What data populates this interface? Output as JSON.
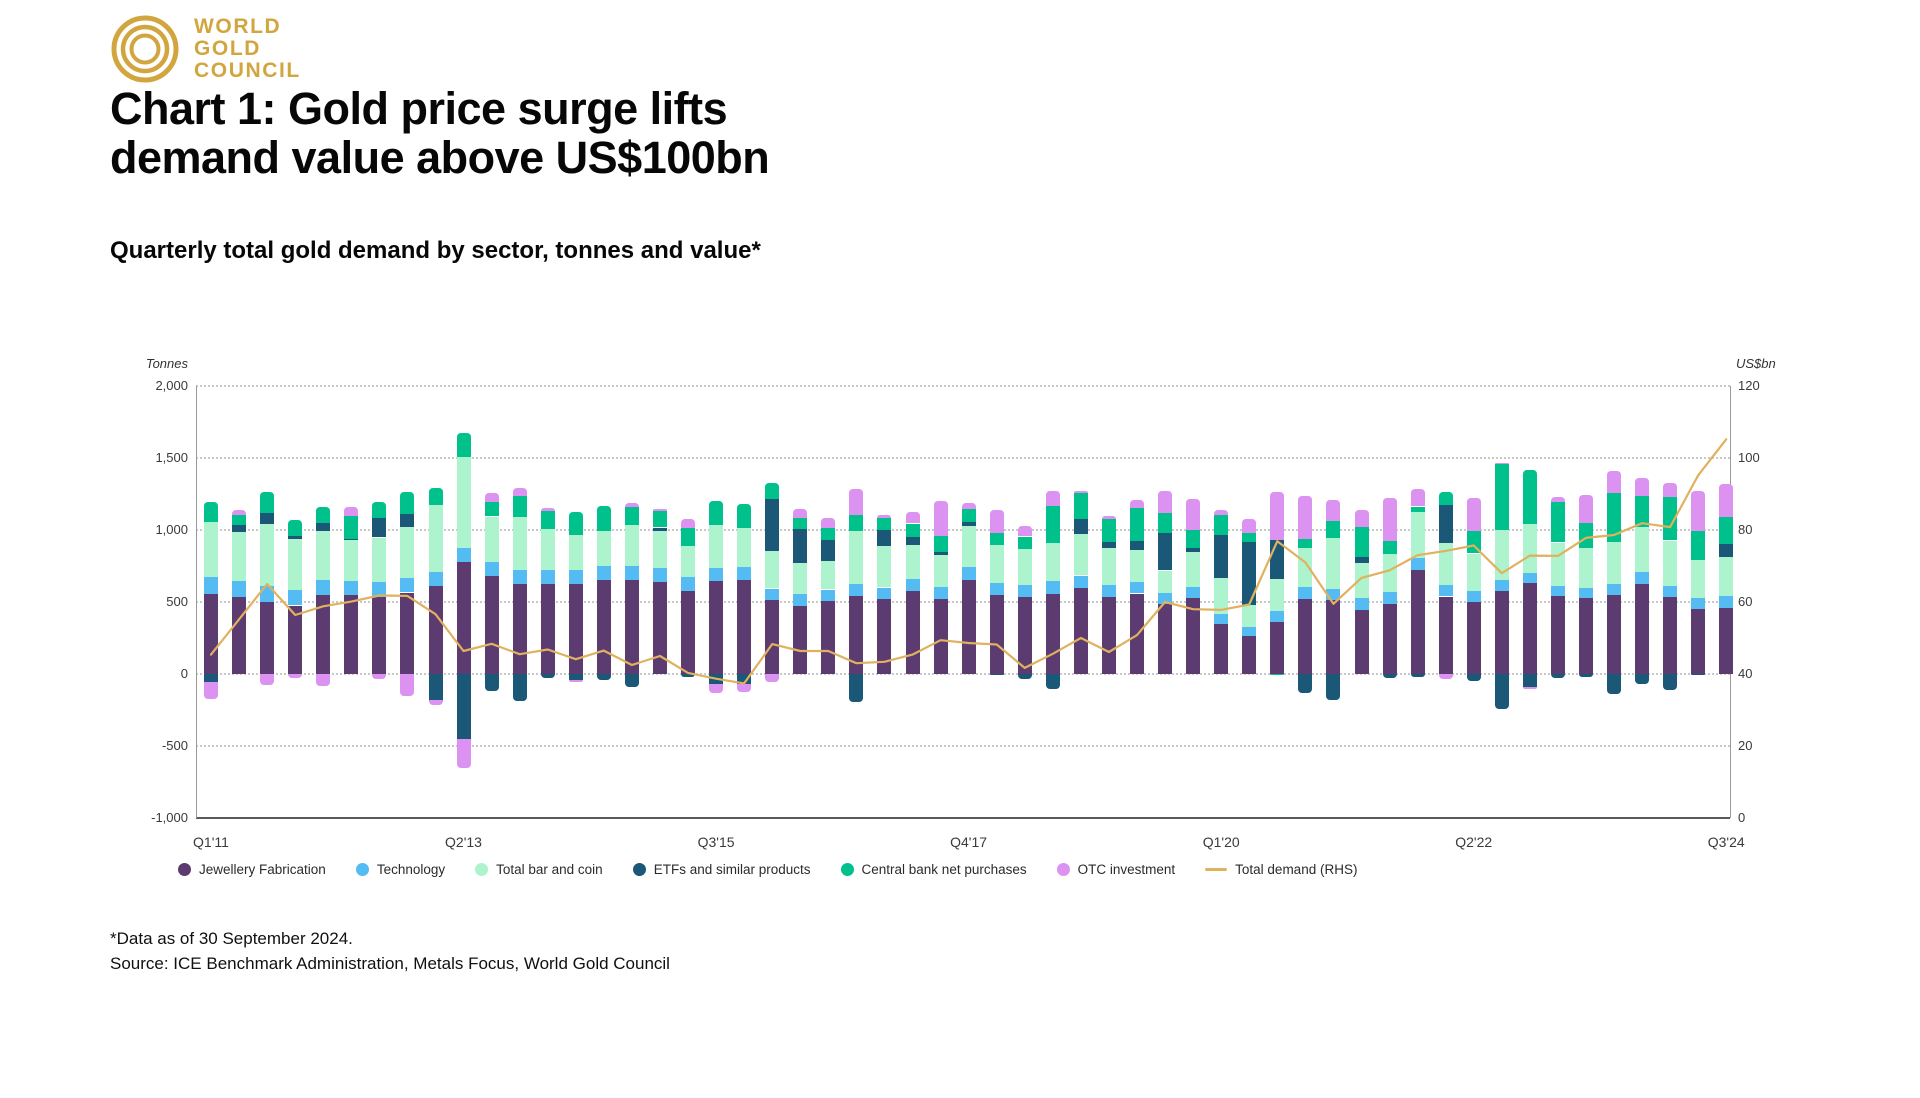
{
  "logo": {
    "lines": [
      "WORLD",
      "GOLD",
      "COUNCIL"
    ],
    "color": "#D2A63F"
  },
  "title_line1": "Chart 1: Gold price surge lifts",
  "title_line2": "demand value above US$100bn",
  "subtitle": "Quarterly total gold demand by sector, tonnes and value*",
  "footnotes": [
    "*Data as of 30 September 2024.",
    "Source: ICE Benchmark Administration, Metals Focus, World Gold Council"
  ],
  "chart_data": {
    "type": "bar",
    "subtype": "stacked-bars-with-line",
    "grid": "dotted-horizontal",
    "legend_position": "bottom",
    "left_axis": {
      "label": "Tonnes",
      "min": -1000,
      "max": 2000,
      "ticks": [
        {
          "v": 2000,
          "label": "2,000"
        },
        {
          "v": 1500,
          "label": "1,500"
        },
        {
          "v": 1000,
          "label": "1,000"
        },
        {
          "v": 500,
          "label": "500"
        },
        {
          "v": 0,
          "label": "0"
        },
        {
          "v": -500,
          "label": "-500"
        },
        {
          "v": -1000,
          "label": "-1,000"
        }
      ]
    },
    "right_axis": {
      "label": "US$bn",
      "min": 0,
      "max": 120,
      "ticks": [
        {
          "v": 120,
          "label": "120"
        },
        {
          "v": 100,
          "label": "100"
        },
        {
          "v": 80,
          "label": "80"
        },
        {
          "v": 60,
          "label": "60"
        },
        {
          "v": 40,
          "label": "40"
        },
        {
          "v": 20,
          "label": "20"
        },
        {
          "v": 0,
          "label": "0"
        }
      ]
    },
    "x_ticks": [
      {
        "index": 0,
        "label": "Q1'11"
      },
      {
        "index": 9,
        "label": "Q2'13"
      },
      {
        "index": 18,
        "label": "Q3'15"
      },
      {
        "index": 27,
        "label": "Q4'17"
      },
      {
        "index": 36,
        "label": "Q1'20"
      },
      {
        "index": 45,
        "label": "Q2'22"
      },
      {
        "index": 54,
        "label": "Q3'24"
      }
    ],
    "quarters": [
      "Q1'11",
      "Q2'11",
      "Q3'11",
      "Q4'11",
      "Q1'12",
      "Q2'12",
      "Q3'12",
      "Q4'12",
      "Q1'13",
      "Q2'13",
      "Q3'13",
      "Q4'13",
      "Q1'14",
      "Q2'14",
      "Q3'14",
      "Q4'14",
      "Q1'15",
      "Q2'15",
      "Q3'15",
      "Q4'15",
      "Q1'16",
      "Q2'16",
      "Q3'16",
      "Q4'16",
      "Q1'17",
      "Q2'17",
      "Q3'17",
      "Q4'17",
      "Q1'18",
      "Q2'18",
      "Q3'18",
      "Q4'18",
      "Q1'19",
      "Q2'19",
      "Q3'19",
      "Q4'19",
      "Q1'20",
      "Q2'20",
      "Q3'20",
      "Q4'20",
      "Q1'21",
      "Q2'21",
      "Q3'21",
      "Q4'21",
      "Q1'22",
      "Q2'22",
      "Q3'22",
      "Q4'22",
      "Q1'23",
      "Q2'23",
      "Q3'23",
      "Q4'23",
      "Q1'24",
      "Q2'24",
      "Q3'24"
    ],
    "series": [
      {
        "name": "Jewellery Fabrication",
        "color": "#5C3B70",
        "values": [
          556,
          534,
          503,
          476,
          550,
          546,
          534,
          566,
          612,
          776,
          679,
          625,
          627,
          625,
          653,
          655,
          642,
          578,
          648,
          651,
          515,
          474,
          505,
          544,
          521,
          577,
          520,
          654,
          550,
          535,
          558,
          600,
          537,
          559,
          486,
          527,
          347,
          261,
          360,
          522,
          512,
          447,
          485,
          720,
          538,
          498,
          578,
          630,
          540,
          529,
          549,
          626,
          535,
          450,
          459
        ]
      },
      {
        "name": "Technology",
        "color": "#54BCF2",
        "values": [
          116,
          112,
          111,
          105,
          103,
          99,
          102,
          99,
          98,
          101,
          99,
          99,
          96,
          97,
          96,
          96,
          94,
          93,
          91,
          91,
          79,
          79,
          82,
          83,
          80,
          81,
          84,
          86,
          82,
          83,
          85,
          84,
          79,
          81,
          80,
          80,
          71,
          66,
          77,
          84,
          81,
          80,
          84,
          86,
          82,
          78,
          77,
          72,
          70,
          70,
          75,
          81,
          79,
          81,
          83
        ]
      },
      {
        "name": "Total bar and coin",
        "color": "#ADF3CE",
        "values": [
          385,
          340,
          429,
          357,
          342,
          290,
          312,
          356,
          461,
          629,
          316,
          364,
          283,
          242,
          246,
          282,
          255,
          216,
          296,
          269,
          258,
          215,
          196,
          364,
          290,
          241,
          223,
          286,
          263,
          248,
          268,
          290,
          259,
          219,
          153,
          241,
          250,
          154,
          222,
          270,
          352,
          245,
          262,
          322,
          288,
          261,
          344,
          340,
          303,
          277,
          296,
          313,
          313,
          261,
          269
        ]
      },
      {
        "name": "ETFs and similar products",
        "color": "#1B5877",
        "values": [
          -56,
          50,
          78,
          19,
          51,
          1,
          138,
          88,
          -177,
          -450,
          -119,
          -185,
          -25,
          -38,
          -41,
          -89,
          26,
          -23,
          -67,
          -68,
          364,
          237,
          146,
          -193,
          109,
          56,
          19,
          29,
          -7,
          -33,
          -104,
          100,
          42,
          68,
          258,
          27,
          299,
          434,
          274,
          -130,
          -178,
          41,
          -27,
          -18,
          269,
          -47,
          -244,
          -90,
          -29,
          -21,
          -139,
          -70,
          -113,
          -7,
          95
        ]
      },
      {
        "name": "Central bank net purchases",
        "color": "#00C18C",
        "values": [
          137,
          66,
          141,
          112,
          116,
          161,
          112,
          156,
          124,
          165,
          101,
          150,
          124,
          158,
          175,
          127,
          112,
          127,
          168,
          169,
          109,
          80,
          82,
          112,
          82,
          90,
          111,
          91,
          86,
          89,
          253,
          180,
          157,
          224,
          141,
          128,
          139,
          63,
          -10,
          63,
          115,
          209,
          91,
          35,
          87,
          158,
          459,
          378,
          284,
          175,
          337,
          219,
          300,
          202,
          186
        ]
      },
      {
        "name": "OTC investment",
        "color": "#DC92F0",
        "values": [
          -120,
          35,
          -75,
          -30,
          -80,
          65,
          -35,
          -150,
          -40,
          -200,
          60,
          55,
          20,
          -20,
          0,
          30,
          20,
          60,
          -66,
          -60,
          -55,
          60,
          70,
          185,
          25,
          78,
          245,
          40,
          155,
          70,
          110,
          15,
          25,
          55,
          150,
          215,
          30,
          100,
          330,
          300,
          150,
          120,
          300,
          120,
          -35,
          230,
          10,
          -15,
          30,
          195,
          150,
          120,
          100,
          280,
          230
        ]
      }
    ],
    "line_series": {
      "name": "Total demand (RHS)",
      "color": "#E0B15E",
      "axis": "right",
      "values": [
        45.4,
        55.2,
        65.0,
        56.4,
        58.8,
        60.1,
        61.8,
        61.7,
        56.6,
        46.4,
        48.4,
        45.5,
        46.8,
        44.1,
        46.5,
        42.5,
        45.0,
        40.3,
        38.7,
        37.4,
        48.3,
        46.4,
        46.4,
        43.0,
        43.4,
        45.4,
        49.4,
        48.6,
        48.2,
        41.7,
        45.6,
        50.0,
        46.1,
        50.8,
        60.0,
        58.0,
        57.8,
        59.3,
        76.9,
        71.0,
        59.5,
        66.7,
        68.8,
        73.0,
        74.2,
        75.7,
        68.0,
        72.9,
        72.8,
        77.8,
        78.6,
        81.9,
        80.8,
        95.2,
        105.2
      ]
    }
  }
}
